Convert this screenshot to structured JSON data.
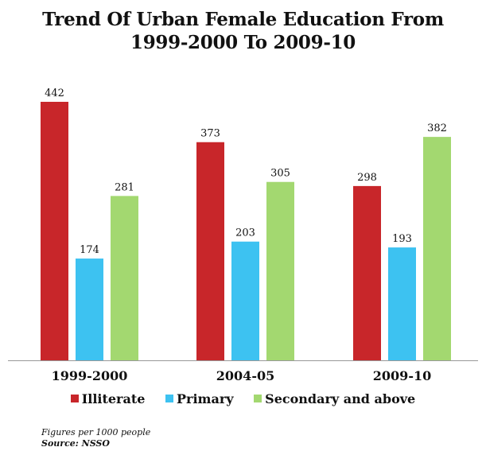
{
  "chart_data": {
    "type": "bar",
    "title_lines": [
      "Trend Of Urban Female Education From",
      "1999-2000 To 2009-10"
    ],
    "categories": [
      "1999-2000",
      "2004-05",
      "2009-10"
    ],
    "series": [
      {
        "name": "Illiterate",
        "color": "#c8262a",
        "values": [
          442,
          373,
          298
        ]
      },
      {
        "name": "Primary",
        "color": "#3dc2f1",
        "values": [
          174,
          203,
          193
        ]
      },
      {
        "name": "Secondary and above",
        "color": "#a3d870",
        "values": [
          281,
          305,
          382
        ]
      }
    ],
    "ylim": [
      0,
      442
    ],
    "grid": false,
    "legend_position": "bottom"
  },
  "notes": {
    "figures": "Figures per 1000 people",
    "source": "Source: NSSO"
  }
}
